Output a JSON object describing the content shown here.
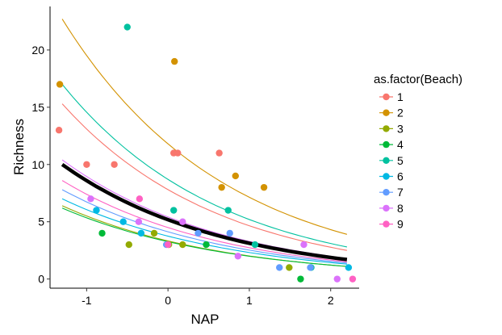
{
  "chart_data": {
    "type": "scatter",
    "xlabel": "NAP",
    "ylabel": "Richness",
    "xlim": [
      -1.45,
      2.35
    ],
    "ylim": [
      -0.8,
      23.8
    ],
    "x_ticks": [
      -1,
      0,
      1,
      2
    ],
    "x_tick_labels": [
      "-1",
      "0",
      "1",
      "2"
    ],
    "y_ticks": [
      0,
      5,
      10,
      15,
      20
    ],
    "y_tick_labels": [
      "0",
      "5",
      "10",
      "15",
      "20"
    ],
    "grid": false,
    "legend": {
      "title": "as.factor(Beach)",
      "placement": "right",
      "entries": [
        {
          "label": "1",
          "color": "#F8766D"
        },
        {
          "label": "2",
          "color": "#D39200"
        },
        {
          "label": "3",
          "color": "#93AA00"
        },
        {
          "label": "4",
          "color": "#00BA38"
        },
        {
          "label": "5",
          "color": "#00C19F"
        },
        {
          "label": "6",
          "color": "#00B9E3"
        },
        {
          "label": "7",
          "color": "#619CFF"
        },
        {
          "label": "8",
          "color": "#DB72FB"
        },
        {
          "label": "9",
          "color": "#FF61C3"
        }
      ]
    },
    "series": [
      {
        "name": "1",
        "color": "#F8766D",
        "points": [
          [
            -1.34,
            13
          ],
          [
            -1.0,
            10
          ],
          [
            -0.66,
            10
          ],
          [
            0.07,
            11
          ],
          [
            0.12,
            11
          ],
          [
            0.63,
            11
          ]
        ]
      },
      {
        "name": "2",
        "color": "#D39200",
        "points": [
          [
            -1.33,
            17
          ],
          [
            0.08,
            19
          ],
          [
            0.66,
            8
          ],
          [
            0.83,
            9
          ],
          [
            1.18,
            8
          ]
        ]
      },
      {
        "name": "3",
        "color": "#93AA00",
        "points": [
          [
            -0.48,
            3
          ],
          [
            -0.17,
            4
          ],
          [
            0.01,
            3
          ],
          [
            0.18,
            3
          ],
          [
            1.49,
            1
          ]
        ]
      },
      {
        "name": "4",
        "color": "#00BA38",
        "points": [
          [
            -0.81,
            4
          ],
          [
            0.47,
            3
          ],
          [
            1.63,
            0
          ]
        ]
      },
      {
        "name": "5",
        "color": "#00C19F",
        "points": [
          [
            -0.5,
            22
          ],
          [
            0.07,
            6
          ],
          [
            0.74,
            6
          ],
          [
            1.07,
            3
          ],
          [
            1.76,
            1
          ]
        ]
      },
      {
        "name": "6",
        "color": "#00B9E3",
        "points": [
          [
            -0.88,
            6
          ],
          [
            -0.55,
            5
          ],
          [
            -0.33,
            4
          ],
          [
            2.22,
            1
          ]
        ]
      },
      {
        "name": "7",
        "color": "#619CFF",
        "points": [
          [
            -0.02,
            3
          ],
          [
            0.37,
            4
          ],
          [
            0.76,
            4
          ],
          [
            1.37,
            1
          ],
          [
            1.75,
            1
          ]
        ]
      },
      {
        "name": "8",
        "color": "#DB72FB",
        "points": [
          [
            -0.95,
            7
          ],
          [
            -0.36,
            5
          ],
          [
            0.18,
            5
          ],
          [
            0.86,
            2
          ],
          [
            1.67,
            3
          ],
          [
            2.08,
            0
          ]
        ]
      },
      {
        "name": "9",
        "color": "#FF61C3",
        "points": [
          [
            -0.35,
            7
          ],
          [
            0.0,
            3
          ],
          [
            2.27,
            0
          ]
        ]
      }
    ],
    "fitted_curves": [
      {
        "group": "1",
        "color": "#F8766D",
        "start": [
          -1.3,
          15.3
        ],
        "end": [
          2.2,
          2.5
        ]
      },
      {
        "group": "2",
        "color": "#D39200",
        "start": [
          -1.3,
          22.7
        ],
        "end": [
          2.2,
          3.9
        ]
      },
      {
        "group": "3",
        "color": "#93AA00",
        "start": [
          -1.3,
          6.4
        ],
        "end": [
          2.2,
          1.1
        ]
      },
      {
        "group": "4",
        "color": "#00BA38",
        "start": [
          -1.3,
          6.2
        ],
        "end": [
          2.2,
          1.1
        ]
      },
      {
        "group": "5",
        "color": "#00C19F",
        "start": [
          -1.3,
          17.0
        ],
        "end": [
          2.2,
          2.8
        ]
      },
      {
        "group": "6",
        "color": "#00B9E3",
        "start": [
          -1.3,
          7.0
        ],
        "end": [
          2.2,
          1.3
        ]
      },
      {
        "group": "7",
        "color": "#619CFF",
        "start": [
          -1.3,
          7.8
        ],
        "end": [
          2.2,
          1.4
        ]
      },
      {
        "group": "8",
        "color": "#DB72FB",
        "start": [
          -1.3,
          10.4
        ],
        "end": [
          2.2,
          1.8
        ]
      },
      {
        "group": "9",
        "color": "#FF61C3",
        "start": [
          -1.3,
          8.6
        ],
        "end": [
          2.2,
          1.5
        ]
      },
      {
        "group": "population",
        "color": "#000000",
        "start": [
          -1.3,
          10.0
        ],
        "end": [
          2.2,
          1.7
        ]
      }
    ]
  }
}
